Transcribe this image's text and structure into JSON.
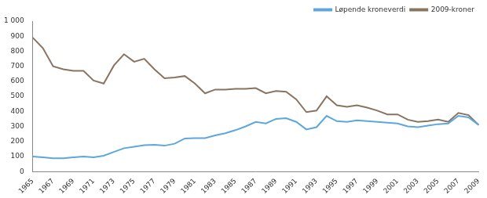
{
  "chart_data": {
    "type": "line",
    "categories": [
      1965,
      null,
      1967,
      null,
      1969,
      null,
      1971,
      null,
      1973,
      null,
      1975,
      null,
      1977,
      null,
      1979,
      null,
      1981,
      null,
      1983,
      null,
      1985,
      null,
      1987,
      null,
      1989,
      null,
      1991,
      null,
      1993,
      null,
      1995,
      null,
      1997,
      null,
      1999,
      null,
      2001,
      null,
      2003,
      null,
      2005,
      null,
      2007,
      null,
      2009
    ],
    "series": [
      {
        "name": "Løpende kroneverdi",
        "color": "#5ea7dc",
        "values": [
          100,
          95,
          88,
          88,
          95,
          100,
          95,
          105,
          130,
          155,
          165,
          175,
          178,
          172,
          185,
          220,
          222,
          222,
          240,
          255,
          275,
          300,
          330,
          320,
          350,
          355,
          330,
          280,
          295,
          370,
          335,
          330,
          340,
          335,
          330,
          325,
          320,
          300,
          295,
          305,
          315,
          320,
          370,
          360,
          310
        ]
      },
      {
        "name": "2009-kroner",
        "color": "#8a7460",
        "values": [
          890,
          820,
          700,
          680,
          670,
          670,
          605,
          585,
          705,
          780,
          730,
          750,
          680,
          620,
          625,
          635,
          585,
          520,
          545,
          545,
          550,
          550,
          555,
          520,
          535,
          530,
          480,
          395,
          405,
          500,
          440,
          430,
          440,
          425,
          405,
          380,
          380,
          345,
          330,
          335,
          345,
          330,
          390,
          375,
          310
        ]
      }
    ],
    "ylim": [
      0,
      1000
    ],
    "yticks": [
      0,
      100,
      200,
      300,
      400,
      500,
      600,
      700,
      800,
      900,
      {
        "value": 1000,
        "label": "1 000"
      }
    ],
    "grid": false,
    "legend": "top-right"
  }
}
